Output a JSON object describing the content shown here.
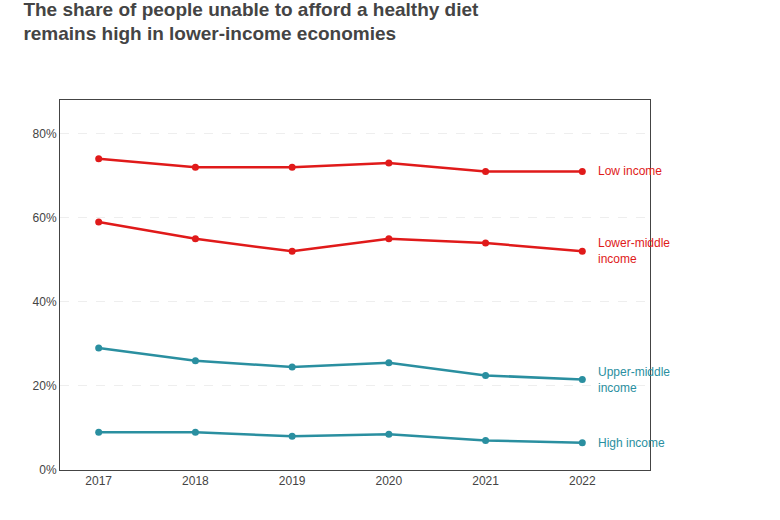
{
  "chart_data": {
    "type": "line",
    "title": "The share of people unable to afford a healthy diet remains high in lower-income economies",
    "x": [
      2017,
      2018,
      2019,
      2020,
      2021,
      2022
    ],
    "series": [
      {
        "name": "Low income",
        "color": "#e01a1a",
        "values": [
          74,
          72,
          72,
          73,
          71,
          71
        ]
      },
      {
        "name": "Lower-middle income",
        "color": "#e01a1a",
        "values": [
          59,
          55,
          52,
          55,
          54,
          52
        ]
      },
      {
        "name": "Upper-middle income",
        "color": "#2a8fa0",
        "values": [
          29,
          26,
          24.5,
          25.5,
          22.5,
          21.5
        ]
      },
      {
        "name": "High income",
        "color": "#2a8fa0",
        "values": [
          9,
          9,
          8,
          8.5,
          7,
          6.5
        ]
      }
    ],
    "xlim": [
      2016.6,
      2022.7
    ],
    "xticks": [
      2017,
      2018,
      2019,
      2020,
      2021,
      2022
    ],
    "ylim": [
      0,
      88
    ],
    "yticks": [
      {
        "value": 0,
        "label": "0%"
      },
      {
        "value": 20,
        "label": "20%"
      },
      {
        "value": 40,
        "label": "40%"
      },
      {
        "value": 60,
        "label": "60%"
      },
      {
        "value": 80,
        "label": "80%"
      }
    ],
    "grid": true,
    "marker": "circle"
  }
}
